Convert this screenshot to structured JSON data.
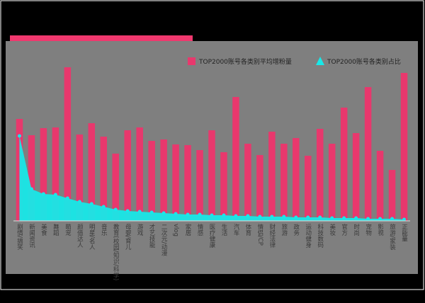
{
  "chart_data": {
    "type": "bar-area",
    "categories": [
      "剧情/搞笑",
      "新闻资讯",
      "美食",
      "舞蹈",
      "萌宠",
      "颜值达人",
      "明星/名人",
      "音乐",
      "教育(校园/知识/科学)",
      "母婴/育儿",
      "游戏",
      "才艺技能",
      "二次元/动漫",
      "vlog",
      "家居",
      "情感",
      "医疗健康",
      "生活",
      "汽车",
      "体育",
      "情侣/CP",
      "财经法律",
      "旅游",
      "政务",
      "运动健身",
      "科技数码",
      "美妆",
      "官方",
      "时尚",
      "宠物",
      "影视",
      "旅游/家装",
      "正能量"
    ],
    "series": [
      {
        "name": "TOP2000账号各类别平均增粉量",
        "color": "#e8386d",
        "values": [
          144,
          121,
          131,
          132,
          217,
          122,
          138,
          119,
          95,
          128,
          132,
          113,
          115,
          108,
          107,
          100,
          128,
          97,
          175,
          109,
          93,
          126,
          109,
          117,
          92,
          130,
          109,
          160,
          124,
          189,
          99,
          72,
          209
        ]
      },
      {
        "name": "TOP2000账号各类别占比",
        "color": "#18e8e8",
        "values": [
          120,
          45,
          38,
          37,
          32,
          27,
          24,
          20,
          16,
          14,
          13,
          12,
          11,
          10,
          9,
          9,
          8,
          8,
          7,
          7,
          6,
          6,
          6,
          5,
          5,
          5,
          4,
          4,
          4,
          3,
          3,
          3,
          2
        ]
      }
    ],
    "ylim": [
      0,
      250
    ],
    "legend": "top-right"
  }
}
